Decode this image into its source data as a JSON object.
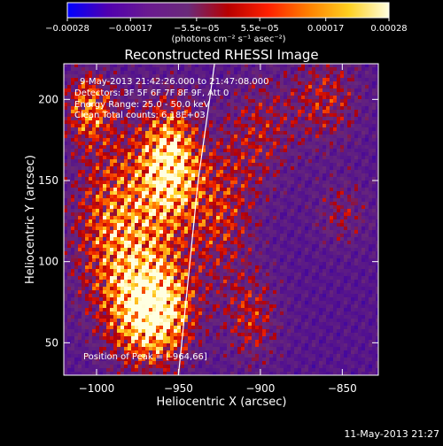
{
  "chart_data": {
    "type": "heatmap",
    "title": "Reconstructed RHESSI Image",
    "xlabel": "Heliocentric X (arcsec)",
    "ylabel": "Heliocentric Y (arcsec)",
    "xlim": [
      -1020,
      -828
    ],
    "ylim": [
      30,
      222
    ],
    "xticks": [
      -1000,
      -950,
      -900,
      -850
    ],
    "xtick_labels": [
      "−1000",
      "−950",
      "−900",
      "−850"
    ],
    "yticks": [
      50,
      100,
      150,
      200
    ],
    "ytick_labels": [
      "50",
      "100",
      "150",
      "200"
    ],
    "colorbar": {
      "range": [
        -0.00028,
        0.00028
      ],
      "ticks": [
        -0.00028,
        -0.00017,
        -5.5e-05,
        5.5e-05,
        0.00017,
        0.00028
      ],
      "tick_labels": [
        "−0.00028",
        "−0.00017",
        "−5.5e−05",
        "5.5e−05",
        "0.00017",
        "0.00028"
      ],
      "unit_label": "(photons cm⁻² s⁻¹ asec⁻²)",
      "colors": [
        "#0000ff",
        "#5000b0",
        "#6a1a90",
        "#6a2a7a",
        "#b80000",
        "#ff2000",
        "#ff8000",
        "#ffd020",
        "#ffffe0"
      ]
    },
    "annotations": [
      "9-May-2013 21:42:26.000 to 21:47:08.000",
      "Detectors: 3F 5F 6F 7F 8F 9F, Att 0",
      "Energy Range: 25.0 - 50.0 keV",
      "Clean     Total counts: 6.18E+03"
    ],
    "peak_label": "Position of Peak = [-964,66]",
    "peak": [
      -964,
      66
    ],
    "limb_curve": [
      [
        -950,
        30
      ],
      [
        -947,
        60
      ],
      [
        -943,
        100
      ],
      [
        -938,
        150
      ],
      [
        -931,
        200
      ],
      [
        -928,
        222
      ]
    ],
    "sources": [
      {
        "x": -965,
        "y": 70,
        "sx": 16,
        "sy": 22,
        "a": 1.0
      },
      {
        "x": -955,
        "y": 160,
        "sx": 12,
        "sy": 25,
        "a": 0.85
      },
      {
        "x": -985,
        "y": 120,
        "sx": 20,
        "sy": 40,
        "a": 0.65
      },
      {
        "x": -1005,
        "y": 195,
        "sx": 10,
        "sy": 15,
        "a": 0.55
      },
      {
        "x": -925,
        "y": 130,
        "sx": 15,
        "sy": 30,
        "a": 0.4
      },
      {
        "x": -905,
        "y": 65,
        "sx": 12,
        "sy": 20,
        "a": 0.35
      },
      {
        "x": -900,
        "y": 180,
        "sx": 15,
        "sy": 25,
        "a": 0.3
      },
      {
        "x": -860,
        "y": 200,
        "sx": 15,
        "sy": 20,
        "a": 0.35
      },
      {
        "x": -850,
        "y": 130,
        "sx": 12,
        "sy": 15,
        "a": 0.25
      }
    ]
  },
  "timestamp": "11-May-2013 21:27"
}
